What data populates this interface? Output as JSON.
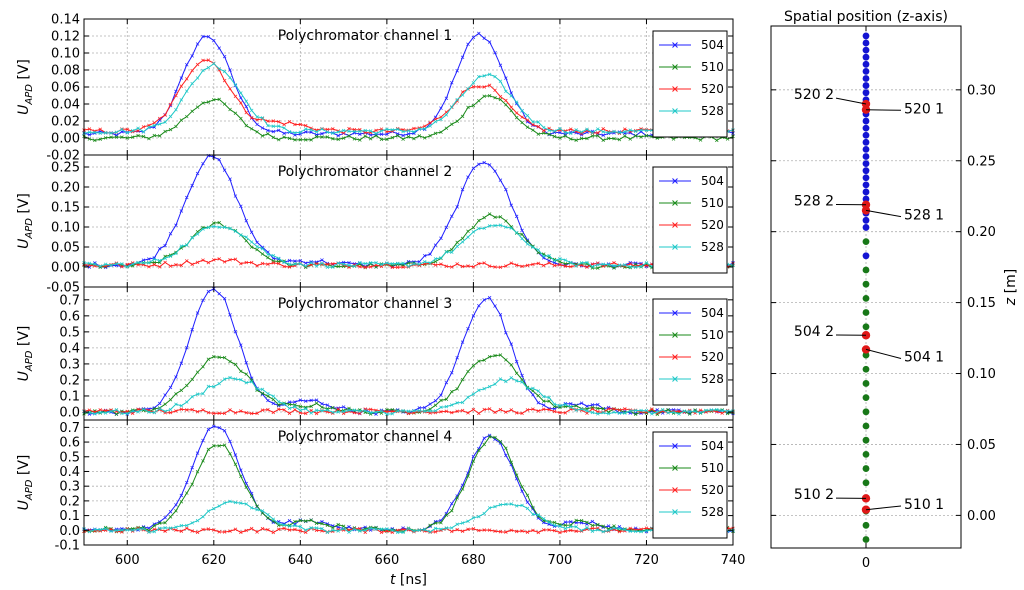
{
  "chart_data": [
    {
      "type": "line",
      "title": "Polychromator channel 1",
      "xlim": [
        590,
        740
      ],
      "ylim": [
        -0.02,
        0.14
      ],
      "yticks": [
        "-0.02",
        "0.00",
        "0.02",
        "0.04",
        "0.06",
        "0.08",
        "0.10",
        "0.12",
        "0.14"
      ],
      "ylabel_main": "U",
      "ylabel_sub": "APD",
      "ylabel_unit": " [V]",
      "series": [
        {
          "name": "504",
          "color": "#1f1fff",
          "baseline": 0.005,
          "pulses": [
            {
              "center": 618.5,
              "amp": 0.115,
              "width": 5.5
            },
            {
              "center": 681.5,
              "amp": 0.117,
              "width": 5.5
            },
            {
              "center": 640,
              "amp": 0.0,
              "width": 5
            }
          ]
        },
        {
          "name": "510",
          "color": "#1a8a1a",
          "baseline": 0.0,
          "pulses": [
            {
              "center": 619.5,
              "amp": 0.045,
              "width": 5.5
            },
            {
              "center": 683.5,
              "amp": 0.05,
              "width": 5.5
            }
          ]
        },
        {
          "name": "520",
          "color": "#ff2020",
          "baseline": 0.008,
          "pulses": [
            {
              "center": 618,
              "amp": 0.085,
              "width": 5.5
            },
            {
              "center": 681.5,
              "amp": 0.055,
              "width": 6
            },
            {
              "center": 635,
              "amp": 0.01,
              "width": 6
            }
          ]
        },
        {
          "name": "528",
          "color": "#1fc8c8",
          "baseline": 0.008,
          "pulses": [
            {
              "center": 620,
              "amp": 0.078,
              "width": 6
            },
            {
              "center": 683,
              "amp": 0.065,
              "width": 6
            }
          ]
        }
      ]
    },
    {
      "type": "line",
      "title": "Polychromator channel 2",
      "xlim": [
        590,
        740
      ],
      "ylim": [
        -0.05,
        0.28
      ],
      "yticks": [
        "-0.05",
        "0.00",
        "0.05",
        "0.10",
        "0.15",
        "0.20",
        "0.25"
      ],
      "ylabel_main": "U",
      "ylabel_sub": "APD",
      "ylabel_unit": " [V]",
      "series": [
        {
          "name": "504",
          "color": "#1f1fff",
          "baseline": 0.005,
          "pulses": [
            {
              "center": 619.5,
              "amp": 0.27,
              "width": 6
            },
            {
              "center": 682.5,
              "amp": 0.26,
              "width": 6
            },
            {
              "center": 642,
              "amp": 0.01,
              "width": 5
            }
          ]
        },
        {
          "name": "510",
          "color": "#1a8a1a",
          "baseline": 0.003,
          "pulses": [
            {
              "center": 621,
              "amp": 0.105,
              "width": 6.5
            },
            {
              "center": 684.5,
              "amp": 0.125,
              "width": 6.5
            }
          ]
        },
        {
          "name": "520",
          "color": "#ff2020",
          "baseline": 0.005,
          "pulses": [
            {
              "center": 621,
              "amp": 0.012,
              "width": 6
            }
          ]
        },
        {
          "name": "528",
          "color": "#1fc8c8",
          "baseline": 0.005,
          "pulses": [
            {
              "center": 621.5,
              "amp": 0.1,
              "width": 7
            },
            {
              "center": 685,
              "amp": 0.1,
              "width": 7
            }
          ]
        }
      ]
    },
    {
      "type": "line",
      "title": "Polychromator channel 3",
      "xlim": [
        590,
        740
      ],
      "ylim": [
        -0.05,
        0.78
      ],
      "yticks": [
        "0.0",
        "0.1",
        "0.2",
        "0.3",
        "0.4",
        "0.5",
        "0.6",
        "0.7"
      ],
      "ylabel_main": "U",
      "ylabel_sub": "APD",
      "ylabel_unit": " [V]",
      "series": [
        {
          "name": "504",
          "color": "#1f1fff",
          "baseline": 0.0,
          "pulses": [
            {
              "center": 620,
              "amp": 0.77,
              "width": 5.5
            },
            {
              "center": 683,
              "amp": 0.71,
              "width": 5.5
            },
            {
              "center": 642,
              "amp": 0.07,
              "width": 5
            },
            {
              "center": 705,
              "amp": 0.05,
              "width": 4.5
            }
          ]
        },
        {
          "name": "510",
          "color": "#1a8a1a",
          "baseline": 0.0,
          "pulses": [
            {
              "center": 621.5,
              "amp": 0.345,
              "width": 6.5
            },
            {
              "center": 684.5,
              "amp": 0.355,
              "width": 6.5
            },
            {
              "center": 643,
              "amp": 0.04,
              "width": 5
            },
            {
              "center": 705,
              "amp": 0.03,
              "width": 4.5
            }
          ]
        },
        {
          "name": "520",
          "color": "#ff2020",
          "baseline": 0.005,
          "pulses": []
        },
        {
          "name": "528",
          "color": "#1fc8c8",
          "baseline": 0.0,
          "pulses": [
            {
              "center": 624.5,
              "amp": 0.21,
              "width": 7
            },
            {
              "center": 688,
              "amp": 0.2,
              "width": 7
            }
          ]
        }
      ]
    },
    {
      "type": "line",
      "title": "Polychromator channel 4",
      "xlim": [
        590,
        740
      ],
      "ylim": [
        -0.1,
        0.75
      ],
      "yticks": [
        "-0.1",
        "0.0",
        "0.1",
        "0.2",
        "0.3",
        "0.4",
        "0.5",
        "0.6",
        "0.7"
      ],
      "xticks": [
        "600",
        "620",
        "640",
        "660",
        "680",
        "700",
        "720",
        "740"
      ],
      "xlabel": "t",
      "xlabel_unit": " [ns]",
      "ylabel_main": "U",
      "ylabel_sub": "APD",
      "ylabel_unit": " [V]",
      "series": [
        {
          "name": "504",
          "color": "#1f1fff",
          "baseline": 0.005,
          "pulses": [
            {
              "center": 620.5,
              "amp": 0.71,
              "width": 5.5
            },
            {
              "center": 684,
              "amp": 0.63,
              "width": 5.5
            },
            {
              "center": 642,
              "amp": 0.06,
              "width": 5
            },
            {
              "center": 705,
              "amp": 0.05,
              "width": 4.5
            }
          ]
        },
        {
          "name": "510",
          "color": "#1a8a1a",
          "baseline": 0.005,
          "pulses": [
            {
              "center": 621,
              "amp": 0.58,
              "width": 5.5
            },
            {
              "center": 684.5,
              "amp": 0.63,
              "width": 5.5
            },
            {
              "center": 642,
              "amp": 0.05,
              "width": 5
            },
            {
              "center": 705,
              "amp": 0.05,
              "width": 4.5
            }
          ]
        },
        {
          "name": "520",
          "color": "#ff2020",
          "baseline": 0.0,
          "pulses": []
        },
        {
          "name": "528",
          "color": "#1fc8c8",
          "baseline": 0.0,
          "pulses": [
            {
              "center": 625,
              "amp": 0.19,
              "width": 6.5
            },
            {
              "center": 688,
              "amp": 0.18,
              "width": 6.5
            }
          ]
        }
      ]
    },
    {
      "type": "scatter",
      "title": "Spatial position (z-axis)",
      "ylim": [
        -0.023,
        0.345
      ],
      "yticks": [
        "0.00",
        "0.05",
        "0.10",
        "0.15",
        "0.20",
        "0.25",
        "0.30"
      ],
      "xtick": "0",
      "ylabel_main": "z",
      "ylabel_unit": " [m]",
      "colors": {
        "blue": "#1414d2",
        "green": "#187818",
        "red": "#e01818"
      },
      "points_blue": [
        0.338,
        0.333,
        0.328,
        0.323,
        0.318,
        0.313,
        0.308,
        0.303,
        0.298,
        0.293,
        0.283,
        0.278,
        0.273,
        0.268,
        0.263,
        0.258,
        0.253,
        0.248,
        0.243,
        0.238,
        0.233,
        0.228,
        0.223,
        0.213,
        0.208,
        0.203,
        0.183
      ],
      "points_green": [
        0.193,
        0.173,
        0.163,
        0.153,
        0.143,
        0.133,
        0.113,
        0.103,
        0.093,
        0.083,
        0.073,
        0.063,
        0.053,
        0.043,
        0.033,
        0.023,
        0.003,
        -0.007,
        -0.017
      ],
      "points_red": [
        0.29,
        0.286,
        0.219,
        0.215,
        0.127,
        0.117,
        0.012,
        0.004
      ],
      "annotations": [
        {
          "label": "520 2",
          "y": 0.29,
          "side": "left",
          "text_y": 0.297
        },
        {
          "label": "520 1",
          "y": 0.286,
          "side": "right",
          "text_y": 0.287
        },
        {
          "label": "528 2",
          "y": 0.219,
          "side": "left",
          "text_y": 0.222
        },
        {
          "label": "528 1",
          "y": 0.215,
          "side": "right",
          "text_y": 0.212
        },
        {
          "label": "504 2",
          "y": 0.127,
          "side": "left",
          "text_y": 0.13
        },
        {
          "label": "504 1",
          "y": 0.117,
          "side": "right",
          "text_y": 0.112
        },
        {
          "label": "510 2",
          "y": 0.012,
          "side": "left",
          "text_y": 0.015
        },
        {
          "label": "510 1",
          "y": 0.004,
          "side": "right",
          "text_y": 0.008
        }
      ]
    }
  ]
}
